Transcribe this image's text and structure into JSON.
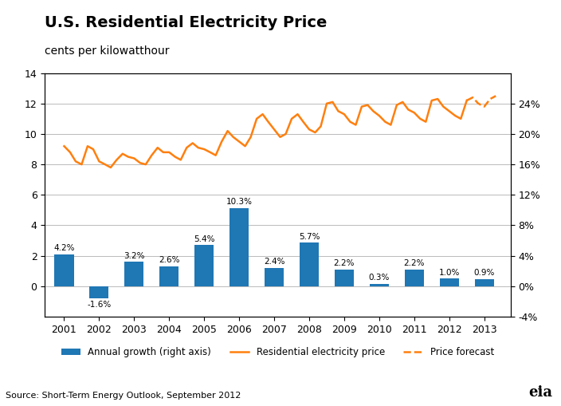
{
  "chart_data": {
    "type": "bar",
    "title": "U.S. Residential Electricity Price",
    "subtitle": "cents per kilowatthour",
    "annotations": [
      "Source: Short-Term Energy Outlook, September 2012",
      "eia"
    ],
    "xlim": [
      2000.45,
      2013.75
    ],
    "xticks": [
      2001,
      2002,
      2003,
      2004,
      2005,
      2006,
      2007,
      2008,
      2009,
      2010,
      2011,
      2012,
      2013
    ],
    "ylim": [
      -2,
      14
    ],
    "yticks": [
      0,
      2,
      4,
      6,
      8,
      10,
      12,
      14
    ],
    "y2lim": [
      -4,
      28
    ],
    "y2ticks": [
      {
        "value": -4,
        "label": "-4%"
      },
      {
        "value": 0,
        "label": "0%"
      },
      {
        "value": 4,
        "label": "4%"
      },
      {
        "value": 8,
        "label": "8%"
      },
      {
        "value": 12,
        "label": "12%"
      },
      {
        "value": 16,
        "label": "16%"
      },
      {
        "value": 20,
        "label": "20%"
      },
      {
        "value": 24,
        "label": "24%"
      }
    ],
    "grid": true,
    "legend": "upper center",
    "series": [
      {
        "name": "Annual growth (right axis)",
        "type": "bar",
        "axis": "y2",
        "data_labels": true,
        "x": [
          2001,
          2002,
          2003,
          2004,
          2005,
          2006,
          2007,
          2008,
          2009,
          2010,
          2011,
          2012,
          2013
        ],
        "values": [
          4.2,
          -1.6,
          3.2,
          2.6,
          5.4,
          10.3,
          2.4,
          5.7,
          2.2,
          0.3,
          2.2,
          1.0,
          0.9
        ],
        "value_labels": [
          "4.2%",
          "-1.6%",
          "3.2%",
          "2.6%",
          "5.4%",
          "10.3%",
          "2.4%",
          "5.7%",
          "2.2%",
          "0.3%",
          "2.2%",
          "1.0%",
          "0.9%"
        ]
      },
      {
        "name": "Residential electricity price",
        "type": "line",
        "line_style": "solid",
        "x": [
          2001.0,
          2001.17,
          2001.33,
          2001.5,
          2001.67,
          2001.83,
          2002.0,
          2002.17,
          2002.33,
          2002.5,
          2002.67,
          2002.83,
          2003.0,
          2003.17,
          2003.33,
          2003.5,
          2003.67,
          2003.83,
          2004.0,
          2004.17,
          2004.33,
          2004.5,
          2004.67,
          2004.83,
          2005.0,
          2005.17,
          2005.33,
          2005.5,
          2005.67,
          2005.83,
          2006.0,
          2006.17,
          2006.33,
          2006.5,
          2006.67,
          2006.83,
          2007.0,
          2007.17,
          2007.33,
          2007.5,
          2007.67,
          2007.83,
          2008.0,
          2008.17,
          2008.33,
          2008.5,
          2008.67,
          2008.83,
          2009.0,
          2009.17,
          2009.33,
          2009.5,
          2009.67,
          2009.83,
          2010.0,
          2010.17,
          2010.33,
          2010.5,
          2010.67,
          2010.83,
          2011.0,
          2011.17,
          2011.33,
          2011.5,
          2011.67,
          2011.83,
          2012.0,
          2012.17,
          2012.33,
          2012.5
        ],
        "values": [
          9.2,
          8.8,
          8.2,
          8.0,
          9.2,
          9.0,
          8.2,
          8.0,
          7.8,
          8.3,
          8.7,
          8.5,
          8.4,
          8.1,
          8.0,
          8.6,
          9.1,
          8.8,
          8.8,
          8.5,
          8.3,
          9.1,
          9.4,
          9.1,
          9.0,
          8.8,
          8.6,
          9.5,
          10.2,
          9.8,
          9.5,
          9.2,
          9.8,
          11.0,
          11.3,
          10.8,
          10.3,
          9.8,
          10.0,
          11.0,
          11.3,
          10.8,
          10.3,
          10.1,
          10.5,
          12.0,
          12.1,
          11.5,
          11.3,
          10.8,
          10.6,
          11.8,
          11.9,
          11.5,
          11.2,
          10.8,
          10.6,
          11.9,
          12.1,
          11.6,
          11.4,
          11.0,
          10.8,
          12.2,
          12.3,
          11.8,
          11.5,
          11.2,
          11.0,
          12.2
        ]
      },
      {
        "name": "Price forecast",
        "type": "line",
        "line_style": "dashed",
        "x": [
          2012.5,
          2012.67,
          2012.83,
          2013.0,
          2013.17,
          2013.33
        ],
        "values": [
          12.2,
          12.4,
          12.0,
          11.8,
          12.3,
          12.5
        ]
      }
    ]
  }
}
